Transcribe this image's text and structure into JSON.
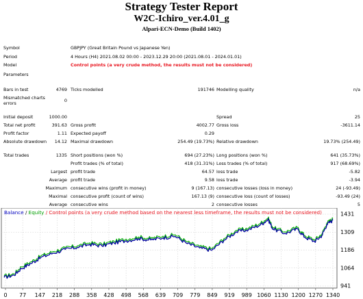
{
  "header": {
    "title": "Strategy Tester Report",
    "expert": "W2C-Ichiro_ver.4.01_g",
    "server": "Alpari-ECN-Demo (Build 1402)"
  },
  "info": {
    "symbol_label": "Symbol",
    "symbol_value": "GBPJPY (Great Britain Pound vs Japanese Yen)",
    "period_label": "Period",
    "period_value": "4 Hours (H4) 2021.08.02 00:00 - 2023.12.29 20:00 (2021.08.01 - 2024.01.01)",
    "model_label": "Model",
    "model_value": "Control points (a very crude method, the results must not be considered)",
    "parameters_label": "Parameters"
  },
  "stats": {
    "bars_label": "Bars in test",
    "bars_value": "4769",
    "ticks_label": "Ticks modelled",
    "ticks_value": "191746",
    "quality_label": "Modelling quality",
    "quality_value": "n/a",
    "mismatch_label_1": "Mismatched charts",
    "mismatch_label_2": "errors",
    "mismatch_value": "0",
    "deposit_label": "Initial deposit",
    "deposit_value": "1000.00",
    "spread_label": "Spread",
    "spread_value": "25",
    "netprofit_label": "Total net profit",
    "netprofit_value": "391.63",
    "grossprofit_label": "Gross profit",
    "grossprofit_value": "4002.77",
    "grossloss_label": "Gross loss",
    "grossloss_value": "-3611.14",
    "pf_label": "Profit factor",
    "pf_value": "1.11",
    "payoff_label": "Expected payoff",
    "payoff_value": "0.29",
    "absdd_label": "Absolute drawdown",
    "absdd_value": "14.12",
    "maxdd_label": "Maximal drawdown",
    "maxdd_value": "254.49 (19.73%)",
    "reldd_label": "Relative drawdown",
    "reldd_value": "19.73% (254.49)",
    "trades_label": "Total trades",
    "trades_value": "1335",
    "short_label": "Short positions (won %)",
    "short_value": "694 (27.23%)",
    "long_label": "Long positions (won %)",
    "long_value": "641 (35.73%)",
    "pt_label": "Profit trades (% of total)",
    "pt_value": "418 (31.31%)",
    "lt_label": "Loss trades (% of total)",
    "lt_value": "917 (68.69%)",
    "largest_label": "Largest",
    "largest_pt_label": "profit trade",
    "largest_pt_value": "64.57",
    "largest_lt_label": "loss trade",
    "largest_lt_value": "-5.82",
    "average_label": "Average",
    "average_pt_label": "profit trade",
    "average_pt_value": "9.58",
    "average_lt_label": "loss trade",
    "average_lt_value": "-3.94",
    "maximum_label": "Maximum",
    "max_cw_label": "consecutive wins (profit in money)",
    "max_cw_value": "9 (167.13)",
    "max_cl_label": "consecutive losses (loss in money)",
    "max_cl_value": "24 (-93.49)",
    "maximal_label": "Maximal",
    "maximal_cp_label": "consecutive profit (count of wins)",
    "maximal_cp_value": "167.13 (9)",
    "maximal_cl_label": "consecutive loss (count of losses)",
    "maximal_cl_value": "-93.49 (24)",
    "avg_label": "Average",
    "avg_cw_label": "consecutive wins",
    "avg_cw_value": "2",
    "avg_cl_label": "consecutive losses",
    "avg_cl_value": "5"
  },
  "chart_legend": {
    "balance": "Balance",
    "slash": " / ",
    "equity": "Equity",
    "rest": " / Control points (a very crude method based on the nearest less timeframe, the results must not be considered)"
  },
  "chart_data": {
    "type": "line",
    "x_ticks": [
      "0",
      "77",
      "147",
      "218",
      "288",
      "358",
      "428",
      "498",
      "568",
      "639",
      "709",
      "779",
      "849",
      "919",
      "989",
      "1060",
      "1130",
      "1200",
      "1270",
      "1340"
    ],
    "y_ticks": [
      "1431",
      "1309",
      "1186",
      "1064",
      "941"
    ],
    "ylim": [
      941,
      1431
    ],
    "xlim": [
      0,
      1345
    ],
    "series": [
      {
        "name": "Balance",
        "color": "#0000a0",
        "points": [
          [
            0,
            1000
          ],
          [
            40,
            1015
          ],
          [
            70,
            1060
          ],
          [
            110,
            1095
          ],
          [
            150,
            1135
          ],
          [
            200,
            1165
          ],
          [
            250,
            1190
          ],
          [
            300,
            1205
          ],
          [
            350,
            1225
          ],
          [
            400,
            1215
          ],
          [
            450,
            1235
          ],
          [
            500,
            1250
          ],
          [
            550,
            1265
          ],
          [
            600,
            1255
          ],
          [
            650,
            1270
          ],
          [
            700,
            1280
          ],
          [
            750,
            1230
          ],
          [
            800,
            1200
          ],
          [
            850,
            1185
          ],
          [
            900,
            1255
          ],
          [
            950,
            1310
          ],
          [
            1000,
            1325
          ],
          [
            1050,
            1360
          ],
          [
            1080,
            1395
          ],
          [
            1100,
            1330
          ],
          [
            1150,
            1300
          ],
          [
            1200,
            1330
          ],
          [
            1230,
            1275
          ],
          [
            1270,
            1245
          ],
          [
            1300,
            1285
          ],
          [
            1320,
            1360
          ],
          [
            1345,
            1390
          ]
        ]
      },
      {
        "name": "Equity",
        "color": "#00b000",
        "points": [
          [
            0,
            1005
          ],
          [
            40,
            1020
          ],
          [
            70,
            1068
          ],
          [
            110,
            1102
          ],
          [
            150,
            1142
          ],
          [
            200,
            1172
          ],
          [
            250,
            1197
          ],
          [
            300,
            1212
          ],
          [
            350,
            1232
          ],
          [
            400,
            1222
          ],
          [
            450,
            1242
          ],
          [
            500,
            1257
          ],
          [
            550,
            1272
          ],
          [
            600,
            1262
          ],
          [
            650,
            1277
          ],
          [
            700,
            1287
          ],
          [
            750,
            1237
          ],
          [
            800,
            1207
          ],
          [
            850,
            1192
          ],
          [
            900,
            1262
          ],
          [
            950,
            1317
          ],
          [
            1000,
            1332
          ],
          [
            1050,
            1367
          ],
          [
            1080,
            1402
          ],
          [
            1100,
            1337
          ],
          [
            1150,
            1307
          ],
          [
            1200,
            1337
          ],
          [
            1230,
            1282
          ],
          [
            1270,
            1252
          ],
          [
            1300,
            1292
          ],
          [
            1320,
            1367
          ],
          [
            1345,
            1397
          ]
        ]
      }
    ]
  }
}
